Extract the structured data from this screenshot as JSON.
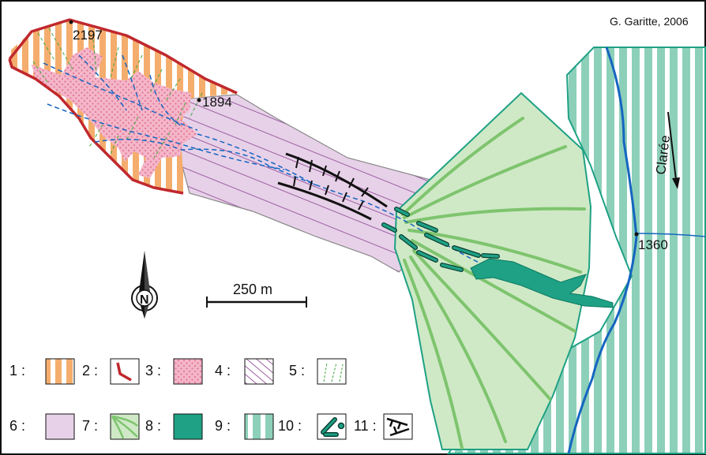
{
  "credit": "G. Garitte, 2006",
  "elevations": [
    {
      "label": "2197"
    },
    {
      "label": "1894"
    },
    {
      "label": "1360"
    }
  ],
  "river_label": "Clarée",
  "north_label": "N",
  "scale": {
    "label": "250 m"
  },
  "legend": [
    {
      "num": "1 :",
      "pattern": "orange-vertical-stripes"
    },
    {
      "num": "2 :",
      "pattern": "red-scarp-line"
    },
    {
      "num": "3 :",
      "pattern": "pink-dotted"
    },
    {
      "num": "4 :",
      "pattern": "purple-diagonal-lines"
    },
    {
      "num": "5 :",
      "pattern": "green-dashed-lines"
    },
    {
      "num": "6 :",
      "pattern": "lavender-fill"
    },
    {
      "num": "7 :",
      "pattern": "green-fan-ridges"
    },
    {
      "num": "8 :",
      "pattern": "teal-fill"
    },
    {
      "num": "9 :",
      "pattern": "teal-vertical-stripes"
    },
    {
      "num": "10 :",
      "pattern": "levee-pills"
    },
    {
      "num": "11 :",
      "pattern": "black-scarp-ticks"
    }
  ],
  "colors": {
    "orange": "#f5ad6d",
    "red": "#c0282d",
    "pink": "#f4b6c8",
    "lavender": "#e7d1e8",
    "purple_line": "#9c5fa2",
    "fan_green": "#cfe9c6",
    "ridge_green": "#7ec46e",
    "teal": "#1ea184",
    "teal_light": "#8dd0ba",
    "river_blue": "#1565c0"
  }
}
